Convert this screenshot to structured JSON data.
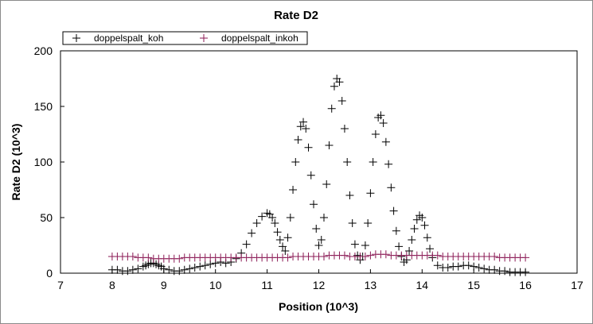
{
  "chart_data": {
    "type": "scatter",
    "title": "Rate D2",
    "xlabel": "Position (10^3)",
    "ylabel": "Rate D2 (10^3)",
    "xlim": [
      7,
      17
    ],
    "ylim": [
      0,
      200
    ],
    "xticks": [
      "7",
      "8",
      "9",
      "10",
      "11",
      "12",
      "13",
      "14",
      "15",
      "16",
      "17"
    ],
    "yticks": [
      "0",
      "50",
      "100",
      "150",
      "200"
    ],
    "grid": false,
    "legend_position": "top-left",
    "marker": "+",
    "series": [
      {
        "name": "doppelspalt_koh",
        "color": "#000000",
        "x": [
          8.0,
          8.1,
          8.2,
          8.3,
          8.4,
          8.5,
          8.6,
          8.65,
          8.7,
          8.75,
          8.8,
          8.85,
          8.9,
          8.95,
          9.0,
          9.1,
          9.2,
          9.3,
          9.4,
          9.5,
          9.6,
          9.7,
          9.8,
          9.9,
          10.0,
          10.1,
          10.2,
          10.3,
          10.4,
          10.5,
          10.6,
          10.7,
          10.8,
          10.9,
          11.0,
          11.05,
          11.1,
          11.15,
          11.2,
          11.25,
          11.3,
          11.35,
          11.4,
          11.45,
          11.5,
          11.55,
          11.6,
          11.65,
          11.7,
          11.75,
          11.8,
          11.85,
          11.9,
          11.95,
          12.0,
          12.05,
          12.1,
          12.15,
          12.2,
          12.25,
          12.3,
          12.35,
          12.4,
          12.45,
          12.5,
          12.55,
          12.6,
          12.65,
          12.7,
          12.75,
          12.8,
          12.85,
          12.9,
          12.95,
          13.0,
          13.05,
          13.1,
          13.15,
          13.2,
          13.25,
          13.3,
          13.35,
          13.4,
          13.45,
          13.5,
          13.55,
          13.6,
          13.65,
          13.7,
          13.75,
          13.8,
          13.85,
          13.9,
          13.95,
          14.0,
          14.05,
          14.1,
          14.15,
          14.2,
          14.3,
          14.4,
          14.5,
          14.6,
          14.7,
          14.8,
          14.9,
          15.0,
          15.1,
          15.2,
          15.3,
          15.4,
          15.5,
          15.6,
          15.7,
          15.8,
          15.9,
          16.0
        ],
        "y": [
          3,
          3,
          2,
          2,
          3,
          4,
          6,
          7,
          8,
          9,
          9,
          8,
          7,
          6,
          4,
          3,
          2,
          2,
          3,
          4,
          5,
          6,
          7,
          8,
          9,
          10,
          9,
          10,
          13,
          18,
          26,
          36,
          45,
          51,
          54,
          53,
          50,
          45,
          37,
          30,
          24,
          20,
          32,
          50,
          75,
          100,
          120,
          132,
          136,
          130,
          113,
          88,
          62,
          40,
          25,
          30,
          50,
          80,
          115,
          148,
          168,
          175,
          172,
          155,
          130,
          100,
          70,
          45,
          26,
          16,
          12,
          15,
          25,
          45,
          72,
          100,
          125,
          140,
          142,
          135,
          118,
          98,
          77,
          56,
          38,
          24,
          15,
          10,
          12,
          20,
          30,
          40,
          48,
          52,
          50,
          43,
          32,
          22,
          14,
          7,
          5,
          5,
          6,
          6,
          7,
          7,
          6,
          5,
          4,
          3,
          3,
          2,
          2,
          1,
          1,
          1,
          1
        ]
      },
      {
        "name": "doppelspalt_inkoh",
        "color": "#8b1a55",
        "x": [
          8.0,
          8.1,
          8.2,
          8.3,
          8.4,
          8.5,
          8.6,
          8.7,
          8.8,
          8.9,
          9.0,
          9.1,
          9.2,
          9.3,
          9.4,
          9.5,
          9.6,
          9.7,
          9.8,
          9.9,
          10.0,
          10.1,
          10.2,
          10.3,
          10.4,
          10.5,
          10.6,
          10.7,
          10.8,
          10.9,
          11.0,
          11.1,
          11.2,
          11.3,
          11.4,
          11.5,
          11.6,
          11.7,
          11.8,
          11.9,
          12.0,
          12.1,
          12.2,
          12.3,
          12.4,
          12.5,
          12.6,
          12.7,
          12.8,
          12.9,
          13.0,
          13.1,
          13.2,
          13.3,
          13.4,
          13.5,
          13.6,
          13.7,
          13.8,
          13.9,
          14.0,
          14.1,
          14.2,
          14.3,
          14.4,
          14.5,
          14.6,
          14.7,
          14.8,
          14.9,
          15.0,
          15.1,
          15.2,
          15.3,
          15.4,
          15.5,
          15.6,
          15.7,
          15.8,
          15.9,
          16.0
        ],
        "y": [
          15,
          15,
          15,
          15,
          15,
          14,
          14,
          14,
          13,
          13,
          13,
          13,
          13,
          13,
          14,
          14,
          14,
          14,
          14,
          14,
          14,
          14,
          14,
          14,
          14,
          14,
          14,
          14,
          14,
          14,
          14,
          14,
          14,
          14,
          14,
          15,
          15,
          15,
          15,
          15,
          15,
          15,
          16,
          16,
          16,
          16,
          15,
          15,
          15,
          15,
          16,
          17,
          17,
          17,
          16,
          16,
          16,
          16,
          16,
          16,
          16,
          16,
          16,
          16,
          15,
          15,
          15,
          15,
          15,
          15,
          15,
          15,
          15,
          15,
          15,
          14,
          14,
          14,
          14,
          14,
          14
        ]
      }
    ]
  }
}
